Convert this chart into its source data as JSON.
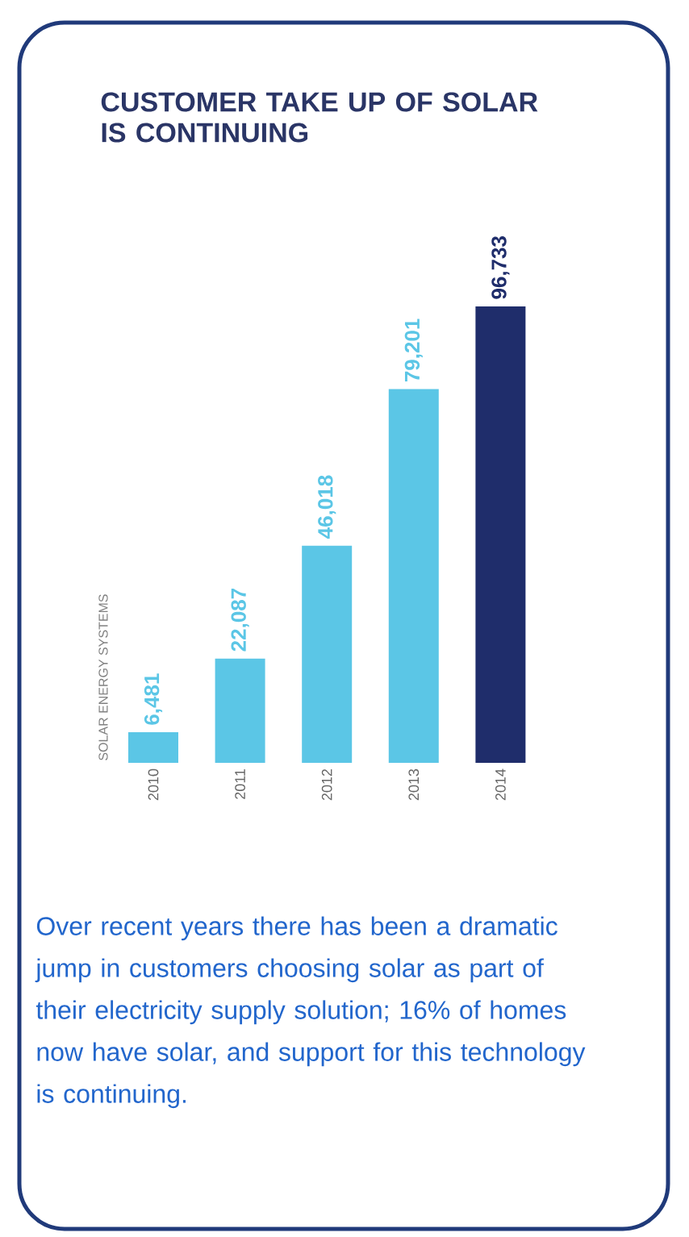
{
  "chart_data": {
    "type": "bar",
    "title": "CUSTOMER TAKE UP OF SOLAR IS CONTINUING",
    "ylabel": "SOLAR ENERGY SYSTEMS",
    "categories": [
      "2010",
      "2011",
      "2012",
      "2013",
      "2014"
    ],
    "values": [
      6481,
      22087,
      46018,
      79201,
      96733
    ],
    "colors": [
      "#5bc6e6",
      "#5bc6e6",
      "#5bc6e6",
      "#5bc6e6",
      "#1f2d6b"
    ],
    "value_labels": [
      "6,481",
      "22,087",
      "46,018",
      "79,201",
      "96,733"
    ],
    "annotations": [
      "Over recent years there has been a dramatic jump in customers choosing solar as part of their electricity supply solution; 16% of homes now have solar, and support for this technology is continuing."
    ]
  }
}
